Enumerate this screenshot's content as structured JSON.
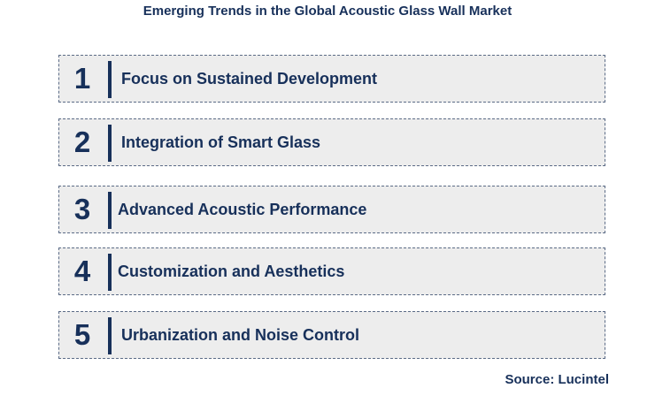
{
  "title": "Emerging Trends in the Global Acoustic Glass Wall Market",
  "trends": [
    {
      "number": "1",
      "label": "Focus on Sustained Development"
    },
    {
      "number": "2",
      "label": "Integration of Smart Glass"
    },
    {
      "number": "3",
      "label": "Advanced Acoustic Performance"
    },
    {
      "number": "4",
      "label": "Customization and Aesthetics"
    },
    {
      "number": "5",
      "label": "Urbanization and Noise Control"
    }
  ],
  "source": "Source: Lucintel",
  "colors": {
    "text": "#17305a",
    "box_fill": "#ededed",
    "box_border": "#5b6b86"
  }
}
